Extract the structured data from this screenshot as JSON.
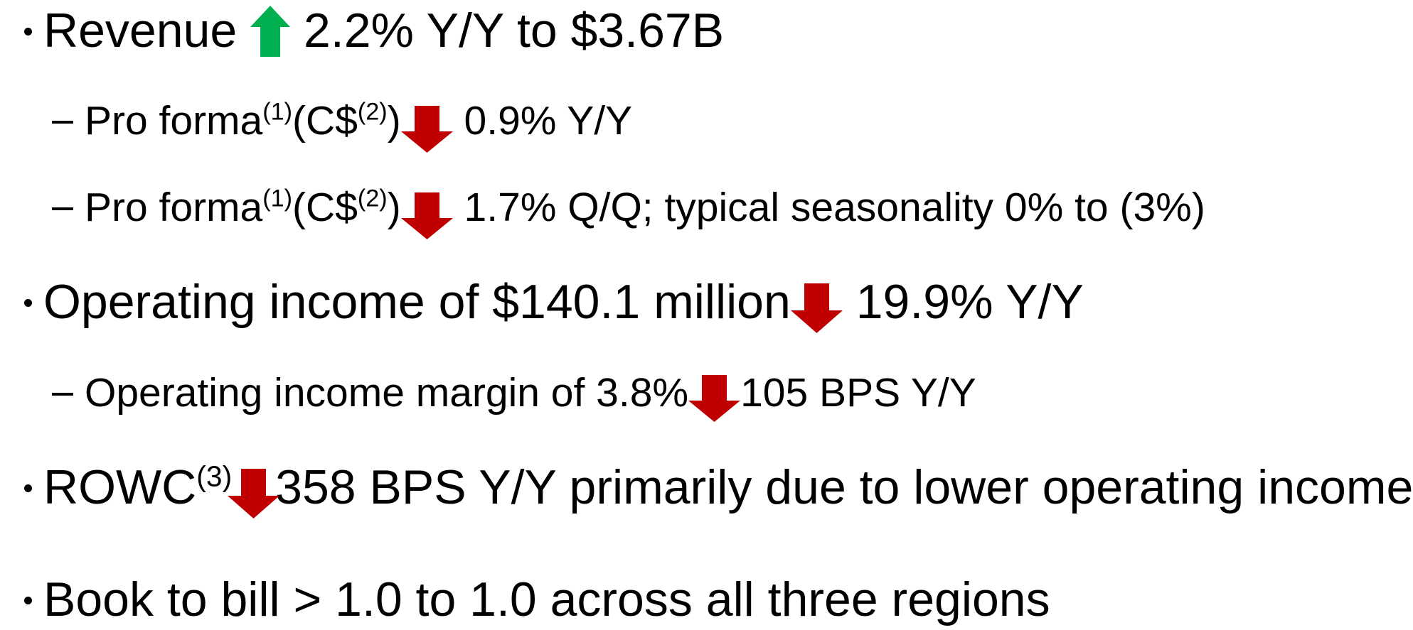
{
  "bullets": [
    {
      "level": 1,
      "parts": [
        "Revenue",
        "2.2% Y/Y to $3.67B"
      ]
    },
    {
      "level": 2,
      "parts": [
        "Pro forma",
        "(1)",
        "(C$",
        "(2)",
        ")",
        "0.9% Y/Y"
      ]
    },
    {
      "level": 2,
      "parts": [
        "Pro forma",
        "(1)",
        "(C$",
        "(2)",
        ")",
        "1.7% Q/Q; typical seasonality 0% to (3%)"
      ]
    },
    {
      "level": 1,
      "parts": [
        "Operating income of $140.1 million",
        "19.9% Y/Y"
      ]
    },
    {
      "level": 2,
      "parts": [
        "Operating income margin of 3.8%",
        "105 BPS Y/Y"
      ]
    },
    {
      "level": 1,
      "parts": [
        "ROWC",
        "(3)",
        "358 BPS Y/Y primarily due to lower operating income"
      ]
    },
    {
      "level": 1,
      "parts": [
        "Book to bill > 1.0 to 1.0 across all three regions"
      ]
    }
  ]
}
